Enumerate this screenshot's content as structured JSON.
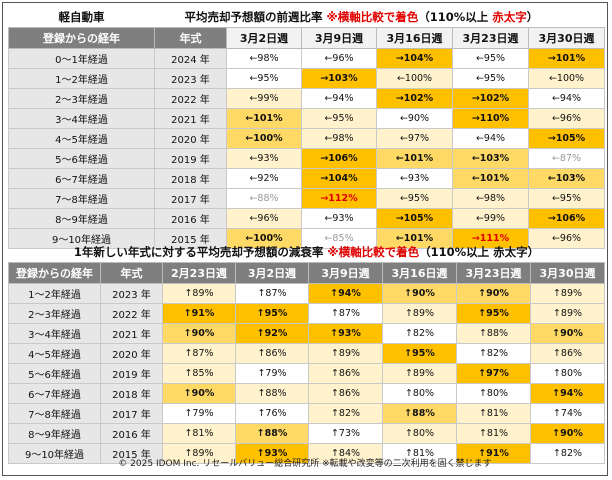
{
  "table1": {
    "category": "軽自動車",
    "title_main": "平均売却予想額の前週比率",
    "title_note_1": "※横軸比較で着色",
    "title_note_2": "（110%以上",
    "title_note_3": "赤太字",
    "title_note_4": "）",
    "headers": [
      "登録からの経年",
      "年式",
      "3月2日週",
      "3月9日週",
      "3月16日週",
      "3月23日週",
      "3月30日週"
    ],
    "rows": [
      {
        "label": "0～1年経過",
        "year": "2024 年",
        "cells": [
          {
            "v": "←98%",
            "c": 1
          },
          {
            "v": "←96%",
            "c": 1
          },
          {
            "v": "→104%",
            "c": 4
          },
          {
            "v": "←95%",
            "c": 1
          },
          {
            "v": "→101%",
            "c": 4
          }
        ]
      },
      {
        "label": "1～2年経過",
        "year": "2023 年",
        "cells": [
          {
            "v": "←95%",
            "c": 1
          },
          {
            "v": "→103%",
            "c": 4
          },
          {
            "v": "←100%",
            "c": 2
          },
          {
            "v": "←95%",
            "c": 1
          },
          {
            "v": "←100%",
            "c": 2
          }
        ]
      },
      {
        "label": "2～3年経過",
        "year": "2022 年",
        "cells": [
          {
            "v": "←99%",
            "c": 2
          },
          {
            "v": "←94%",
            "c": 1
          },
          {
            "v": "→102%",
            "c": 4
          },
          {
            "v": "→102%",
            "c": 4
          },
          {
            "v": "←94%",
            "c": 1
          }
        ]
      },
      {
        "label": "3～4年経過",
        "year": "2021 年",
        "cells": [
          {
            "v": "←101%",
            "c": 3
          },
          {
            "v": "←95%",
            "c": 2
          },
          {
            "v": "←90%",
            "c": 1
          },
          {
            "v": "→110%",
            "c": 4
          },
          {
            "v": "←96%",
            "c": 2
          }
        ]
      },
      {
        "label": "4～5年経過",
        "year": "2020 年",
        "cells": [
          {
            "v": "←100%",
            "c": 3
          },
          {
            "v": "←98%",
            "c": 2
          },
          {
            "v": "←97%",
            "c": 2
          },
          {
            "v": "←94%",
            "c": 1
          },
          {
            "v": "→105%",
            "c": 4
          }
        ]
      },
      {
        "label": "5～6年経過",
        "year": "2019 年",
        "cells": [
          {
            "v": "←93%",
            "c": 2
          },
          {
            "v": "→106%",
            "c": 4
          },
          {
            "v": "←101%",
            "c": 3
          },
          {
            "v": "←103%",
            "c": 3
          },
          {
            "v": "←87%",
            "c": 1,
            "dim": true
          }
        ]
      },
      {
        "label": "6～7年経過",
        "year": "2018 年",
        "cells": [
          {
            "v": "←92%",
            "c": 1
          },
          {
            "v": "→104%",
            "c": 4
          },
          {
            "v": "←93%",
            "c": 1
          },
          {
            "v": "←101%",
            "c": 3
          },
          {
            "v": "←103%",
            "c": 3
          }
        ]
      },
      {
        "label": "7～8年経過",
        "year": "2017 年",
        "cells": [
          {
            "v": "←88%",
            "c": 1,
            "dim": true
          },
          {
            "v": "→112%",
            "c": 4,
            "red": true
          },
          {
            "v": "←95%",
            "c": 2
          },
          {
            "v": "←98%",
            "c": 2
          },
          {
            "v": "←95%",
            "c": 2
          }
        ]
      },
      {
        "label": "8～9年経過",
        "year": "2016 年",
        "cells": [
          {
            "v": "←96%",
            "c": 2
          },
          {
            "v": "←93%",
            "c": 1
          },
          {
            "v": "→105%",
            "c": 4
          },
          {
            "v": "←99%",
            "c": 2
          },
          {
            "v": "→106%",
            "c": 4
          }
        ]
      },
      {
        "label": "9～10年経過",
        "year": "2015 年",
        "cells": [
          {
            "v": "←100%",
            "c": 3
          },
          {
            "v": "←85%",
            "c": 1,
            "dim": true
          },
          {
            "v": "←101%",
            "c": 3
          },
          {
            "v": "→111%",
            "c": 4,
            "red": true
          },
          {
            "v": "←96%",
            "c": 2
          }
        ]
      }
    ]
  },
  "table2": {
    "title_main": "1年新しい年式に対する平均売却予想額の減衰率",
    "title_note_1": "※横軸比較で着色",
    "title_note_2": "（110%以上",
    "title_note_3": "赤太字",
    "title_note_4": "）",
    "headers": [
      "登録からの経年",
      "年式",
      "2月23日週",
      "3月2日週",
      "3月9日週",
      "3月16日週",
      "3月23日週",
      "3月30日週"
    ],
    "rows": [
      {
        "label": "1～2年経過",
        "year": "2023 年",
        "cells": [
          {
            "v": "↑89%",
            "c": 2
          },
          {
            "v": "↑87%",
            "c": 1
          },
          {
            "v": "↑94%",
            "c": 4
          },
          {
            "v": "↑90%",
            "c": 3
          },
          {
            "v": "↑90%",
            "c": 3
          },
          {
            "v": "↑89%",
            "c": 2
          }
        ]
      },
      {
        "label": "2～3年経過",
        "year": "2022 年",
        "cells": [
          {
            "v": "↑91%",
            "c": 4
          },
          {
            "v": "↑95%",
            "c": 4
          },
          {
            "v": "↑87%",
            "c": 1
          },
          {
            "v": "↑89%",
            "c": 2
          },
          {
            "v": "↑95%",
            "c": 4
          },
          {
            "v": "↑89%",
            "c": 2
          }
        ]
      },
      {
        "label": "3～4年経過",
        "year": "2021 年",
        "cells": [
          {
            "v": "↑90%",
            "c": 3
          },
          {
            "v": "↑92%",
            "c": 4
          },
          {
            "v": "↑93%",
            "c": 4
          },
          {
            "v": "↑82%",
            "c": 1
          },
          {
            "v": "↑88%",
            "c": 2
          },
          {
            "v": "↑90%",
            "c": 3
          }
        ]
      },
      {
        "label": "4～5年経過",
        "year": "2020 年",
        "cells": [
          {
            "v": "↑87%",
            "c": 2
          },
          {
            "v": "↑86%",
            "c": 2
          },
          {
            "v": "↑89%",
            "c": 2
          },
          {
            "v": "↑95%",
            "c": 4
          },
          {
            "v": "↑82%",
            "c": 1
          },
          {
            "v": "↑86%",
            "c": 2
          }
        ]
      },
      {
        "label": "5～6年経過",
        "year": "2019 年",
        "cells": [
          {
            "v": "↑85%",
            "c": 2
          },
          {
            "v": "↑79%",
            "c": 1
          },
          {
            "v": "↑86%",
            "c": 2
          },
          {
            "v": "↑89%",
            "c": 2
          },
          {
            "v": "↑97%",
            "c": 4
          },
          {
            "v": "↑80%",
            "c": 1
          }
        ]
      },
      {
        "label": "6～7年経過",
        "year": "2018 年",
        "cells": [
          {
            "v": "↑90%",
            "c": 3
          },
          {
            "v": "↑88%",
            "c": 2
          },
          {
            "v": "↑86%",
            "c": 2
          },
          {
            "v": "↑80%",
            "c": 1
          },
          {
            "v": "↑80%",
            "c": 1
          },
          {
            "v": "↑94%",
            "c": 4
          }
        ]
      },
      {
        "label": "7～8年経過",
        "year": "2017 年",
        "cells": [
          {
            "v": "↑79%",
            "c": 1
          },
          {
            "v": "↑76%",
            "c": 1
          },
          {
            "v": "↑82%",
            "c": 2
          },
          {
            "v": "↑88%",
            "c": 3
          },
          {
            "v": "↑81%",
            "c": 2
          },
          {
            "v": "↑74%",
            "c": 1
          }
        ]
      },
      {
        "label": "8～9年経過",
        "year": "2016 年",
        "cells": [
          {
            "v": "↑81%",
            "c": 2
          },
          {
            "v": "↑88%",
            "c": 3
          },
          {
            "v": "↑73%",
            "c": 1
          },
          {
            "v": "↑80%",
            "c": 2
          },
          {
            "v": "↑81%",
            "c": 2
          },
          {
            "v": "↑90%",
            "c": 4
          }
        ]
      },
      {
        "label": "9～10年経過",
        "year": "2015 年",
        "cells": [
          {
            "v": "↑89%",
            "c": 2
          },
          {
            "v": "↑93%",
            "c": 4
          },
          {
            "v": "↑84%",
            "c": 2
          },
          {
            "v": "↑81%",
            "c": 1
          },
          {
            "v": "↑91%",
            "c": 4
          },
          {
            "v": "↑82%",
            "c": 1
          }
        ]
      }
    ]
  },
  "footer": "© 2025 IDOM Inc. リセールバリュー総合研究所 ※転載や改変等の二次利用を固く禁じます",
  "colors": {
    "header_bg": "#7f7f7f",
    "label_bg": "#e7e7e7",
    "level_1": "#ffffff",
    "level_2": "#fff2cc",
    "level_3": "#ffd966",
    "level_4": "#ffc000",
    "highlight_text": "#e00000"
  }
}
